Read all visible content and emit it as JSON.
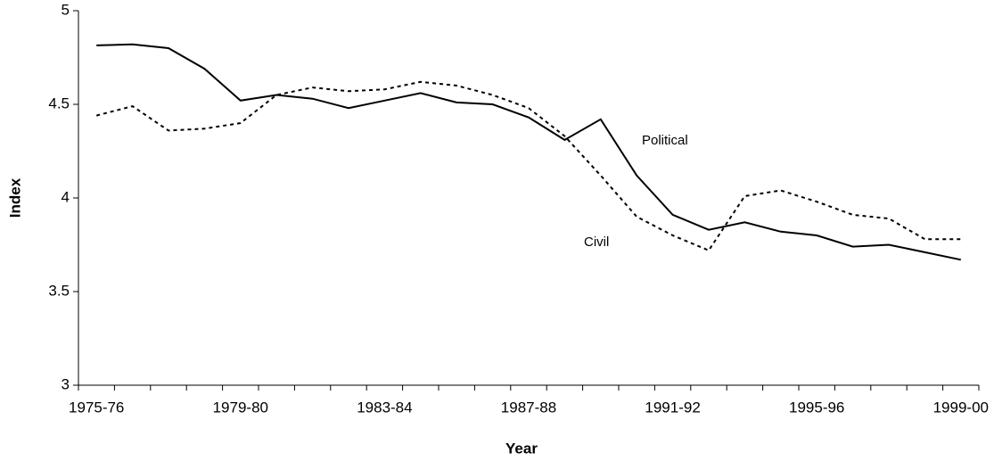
{
  "chart_data": {
    "type": "line",
    "x_label": "Year",
    "y_label": "Index",
    "categories": [
      "1975-76",
      null,
      null,
      null,
      "1979-80",
      null,
      null,
      null,
      "1983-84",
      null,
      null,
      null,
      "1987-88",
      null,
      null,
      null,
      "1991-92",
      null,
      null,
      null,
      "1995-96",
      null,
      null,
      null,
      "1999-00"
    ],
    "series": [
      {
        "name": "Political",
        "color": "#000000",
        "style": "solid",
        "values": [
          4.815,
          4.82,
          4.8,
          4.69,
          4.52,
          4.55,
          4.53,
          4.48,
          4.52,
          4.56,
          4.51,
          4.5,
          4.43,
          4.31,
          4.42,
          4.12,
          3.91,
          3.83,
          3.87,
          3.82,
          3.8,
          3.74,
          3.75,
          3.71,
          3.67
        ]
      },
      {
        "name": "Civil",
        "color": "#000000",
        "style": "dashed",
        "values": [
          4.44,
          4.49,
          4.36,
          4.37,
          4.4,
          4.55,
          4.59,
          4.57,
          4.58,
          4.62,
          4.6,
          4.55,
          4.48,
          4.33,
          4.12,
          3.9,
          3.8,
          3.72,
          4.01,
          4.04,
          3.98,
          3.91,
          3.89,
          3.78,
          3.78
        ]
      }
    ],
    "annotations": [
      "Political",
      "Civil"
    ],
    "ylim": [
      3,
      5
    ],
    "yticks": [
      3,
      3.5,
      4,
      4.5,
      5
    ],
    "grid": false
  }
}
